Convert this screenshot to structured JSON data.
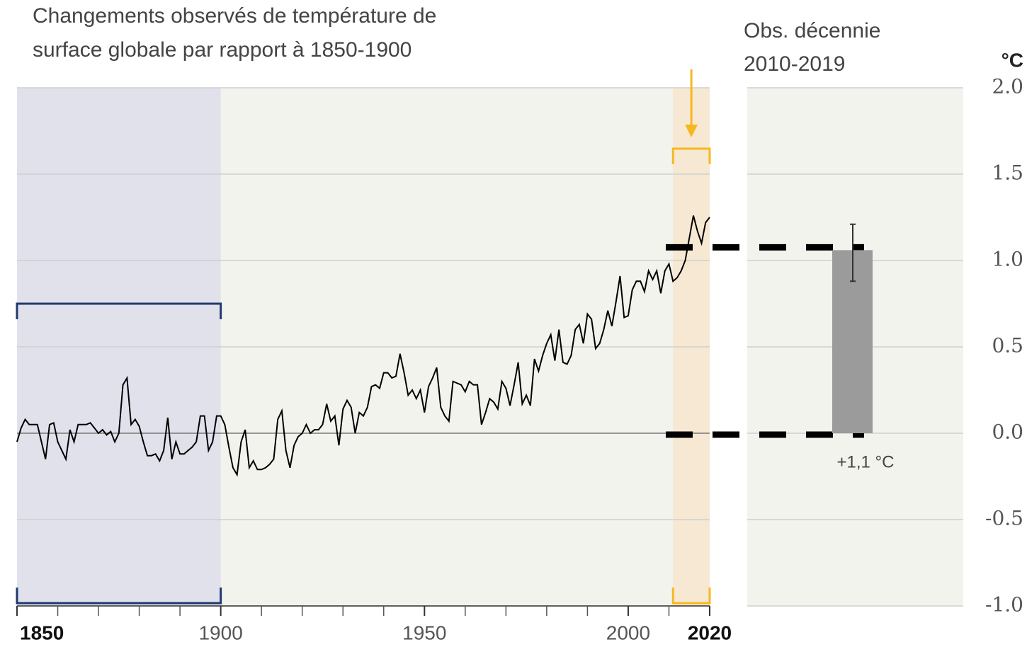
{
  "chart_data": {
    "type": "line",
    "title_lines": [
      "Changements observés de température de",
      "surface globale par rapport à 1850-1900"
    ],
    "panel_title_lines": [
      "Obs. décennie",
      "2010-2019"
    ],
    "y_unit": "°C",
    "color": "#000000",
    "x": [
      1850,
      1851,
      1852,
      1853,
      1854,
      1855,
      1856,
      1857,
      1858,
      1859,
      1860,
      1861,
      1862,
      1863,
      1864,
      1865,
      1866,
      1867,
      1868,
      1869,
      1870,
      1871,
      1872,
      1873,
      1874,
      1875,
      1876,
      1877,
      1878,
      1879,
      1880,
      1881,
      1882,
      1883,
      1884,
      1885,
      1886,
      1887,
      1888,
      1889,
      1890,
      1891,
      1892,
      1893,
      1894,
      1895,
      1896,
      1897,
      1898,
      1899,
      1900,
      1901,
      1902,
      1903,
      1904,
      1905,
      1906,
      1907,
      1908,
      1909,
      1910,
      1911,
      1912,
      1913,
      1914,
      1915,
      1916,
      1917,
      1918,
      1919,
      1920,
      1921,
      1922,
      1923,
      1924,
      1925,
      1926,
      1927,
      1928,
      1929,
      1930,
      1931,
      1932,
      1933,
      1934,
      1935,
      1936,
      1937,
      1938,
      1939,
      1940,
      1941,
      1942,
      1943,
      1944,
      1945,
      1946,
      1947,
      1948,
      1949,
      1950,
      1951,
      1952,
      1953,
      1954,
      1955,
      1956,
      1957,
      1958,
      1959,
      1960,
      1961,
      1962,
      1963,
      1964,
      1965,
      1966,
      1967,
      1968,
      1969,
      1970,
      1971,
      1972,
      1973,
      1974,
      1975,
      1976,
      1977,
      1978,
      1979,
      1980,
      1981,
      1982,
      1983,
      1984,
      1985,
      1986,
      1987,
      1988,
      1989,
      1990,
      1991,
      1992,
      1993,
      1994,
      1995,
      1996,
      1997,
      1998,
      1999,
      2000,
      2001,
      2002,
      2003,
      2004,
      2005,
      2006,
      2007,
      2008,
      2009,
      2010,
      2011,
      2012,
      2013,
      2014,
      2015,
      2016,
      2017,
      2018,
      2019,
      2020
    ],
    "values": [
      -0.05,
      0.03,
      0.08,
      0.05,
      0.05,
      0.05,
      -0.05,
      -0.15,
      0.05,
      0.06,
      -0.05,
      -0.1,
      -0.15,
      0.02,
      -0.05,
      0.05,
      0.05,
      0.05,
      0.06,
      0.03,
      0.0,
      0.02,
      -0.01,
      0.01,
      -0.05,
      0.0,
      0.28,
      0.32,
      0.05,
      0.08,
      0.04,
      -0.05,
      -0.13,
      -0.13,
      -0.12,
      -0.16,
      -0.1,
      0.09,
      -0.15,
      -0.05,
      -0.12,
      -0.12,
      -0.1,
      -0.08,
      -0.05,
      0.1,
      0.1,
      -0.1,
      -0.05,
      0.1,
      0.1,
      0.05,
      -0.08,
      -0.2,
      -0.24,
      -0.05,
      0.02,
      -0.2,
      -0.16,
      -0.21,
      -0.21,
      -0.2,
      -0.18,
      -0.15,
      0.08,
      0.13,
      -0.1,
      -0.2,
      -0.07,
      -0.02,
      0.0,
      0.05,
      0.0,
      0.02,
      0.02,
      0.05,
      0.17,
      0.07,
      0.1,
      -0.07,
      0.14,
      0.19,
      0.15,
      0.0,
      0.12,
      0.1,
      0.15,
      0.27,
      0.28,
      0.26,
      0.35,
      0.35,
      0.32,
      0.33,
      0.46,
      0.35,
      0.22,
      0.25,
      0.2,
      0.25,
      0.12,
      0.27,
      0.32,
      0.38,
      0.15,
      0.1,
      0.07,
      0.3,
      0.29,
      0.28,
      0.24,
      0.3,
      0.28,
      0.28,
      0.05,
      0.12,
      0.2,
      0.18,
      0.14,
      0.3,
      0.26,
      0.16,
      0.28,
      0.41,
      0.17,
      0.22,
      0.16,
      0.43,
      0.36,
      0.45,
      0.52,
      0.57,
      0.42,
      0.6,
      0.41,
      0.4,
      0.45,
      0.6,
      0.63,
      0.52,
      0.69,
      0.66,
      0.49,
      0.52,
      0.6,
      0.71,
      0.62,
      0.76,
      0.91,
      0.67,
      0.68,
      0.83,
      0.88,
      0.88,
      0.82,
      0.94,
      0.89,
      0.94,
      0.81,
      0.94,
      0.98,
      0.88,
      0.9,
      0.94,
      1.0,
      1.13,
      1.26,
      1.17,
      1.1,
      1.22,
      1.25
    ],
    "xlim": [
      1850,
      2020
    ],
    "xticks": [
      1850,
      1900,
      1950,
      2000,
      2020
    ],
    "x_minor_ticks": [
      1860,
      1870,
      1880,
      1890,
      1910,
      1920,
      1930,
      1940,
      1960,
      1970,
      1980,
      1990,
      2010
    ],
    "ylim": [
      -1,
      2
    ],
    "yticks": [
      {
        "value": 2,
        "label": "2.0"
      },
      {
        "value": 1.5,
        "label": "1.5"
      },
      {
        "value": 1,
        "label": "1.0"
      },
      {
        "value": 0.5,
        "label": "0.5"
      },
      {
        "value": 0,
        "label": "0.0"
      },
      {
        "value": -0.5,
        "label": "-0.5"
      },
      {
        "value": -1,
        "label": "-1.0"
      }
    ],
    "grid": true,
    "reference_period": [
      1850,
      1900
    ],
    "highlight_period": [
      2011,
      2020
    ],
    "decade_bar": {
      "value": 1.06,
      "value_label": "+1,1 °C",
      "error_low": 0.88,
      "error_high": 1.21,
      "color": "#9b9b9b"
    }
  }
}
